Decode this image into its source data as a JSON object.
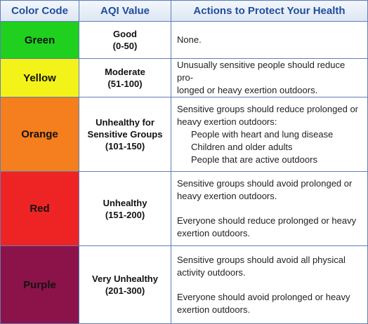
{
  "headers": {
    "color_code": "Color Code",
    "aqi_value": "AQI Value",
    "actions": "Actions to Protect Your Health"
  },
  "rows": [
    {
      "color_name": "Green",
      "color_hex": "#1fd01f",
      "aqi_label": "Good",
      "aqi_range": "(0-50)",
      "actions": {
        "line1": "None."
      }
    },
    {
      "color_name": "Yellow",
      "color_hex": "#f3f31a",
      "aqi_label": "Moderate",
      "aqi_range": "(51-100)",
      "actions": {
        "line1": "Unusually sensitive people should reduce pro-",
        "line2": "longed or heavy exertion outdoors."
      }
    },
    {
      "color_name": "Orange",
      "color_hex": "#f57e1e",
      "aqi_label1": "Unhealthy for",
      "aqi_label2": "Sensitive Groups",
      "aqi_range": "(101-150)",
      "actions": {
        "line1": "Sensitive groups should reduce prolonged or",
        "line2": "heavy exertion outdoors:",
        "bullets": [
          "People with heart and lung disease",
          "Children and older adults",
          "People that are active outdoors"
        ]
      }
    },
    {
      "color_name": "Red",
      "color_hex": "#ee2424",
      "aqi_label": "Unhealthy",
      "aqi_range": "(151-200)",
      "actions": {
        "p1_line1": "Sensitive groups should avoid prolonged or",
        "p1_line2": "heavy exertion outdoors.",
        "p2_line1": "Everyone should reduce prolonged or heavy",
        "p2_line2": "exertion outdoors."
      }
    },
    {
      "color_name": "Purple",
      "color_hex": "#8b1349",
      "aqi_label": "Very Unhealthy",
      "aqi_range": "(201-300)",
      "actions": {
        "p1_line1": "Sensitive groups should avoid all physical",
        "p1_line2": "activity outdoors.",
        "p2_line1": "Everyone should avoid prolonged or heavy",
        "p2_line2": "exertion outdoors."
      }
    }
  ]
}
